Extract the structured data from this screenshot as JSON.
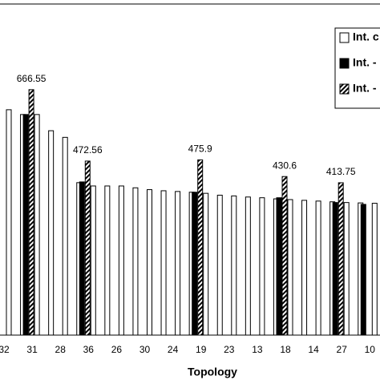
{
  "chart_data": {
    "type": "bar",
    "x_label": "Topology",
    "categories": [
      "32",
      null,
      "31",
      null,
      "28",
      null,
      "36",
      null,
      "26",
      null,
      "30",
      null,
      "24",
      null,
      "19",
      null,
      "23",
      null,
      "13",
      null,
      "18",
      null,
      "14",
      null,
      "27",
      null,
      "10"
    ],
    "ylim": [
      0,
      910
    ],
    "legend": "top-right",
    "series": [
      {
        "name": "Int. c",
        "color": "#ffffff",
        "pattern": "none",
        "values": [
          612,
          599,
          599,
          555,
          537,
          414,
          405,
          405,
          405,
          400,
          395,
          392,
          390,
          388,
          385,
          380,
          378,
          375,
          373,
          370,
          368,
          366,
          364,
          362,
          360,
          359,
          358
        ]
      },
      {
        "name": "Int. -",
        "color": "#000000",
        "pattern": "none",
        "values": [
          null,
          null,
          599,
          null,
          null,
          null,
          416,
          null,
          null,
          null,
          null,
          null,
          null,
          null,
          388,
          null,
          null,
          null,
          null,
          null,
          373,
          null,
          null,
          null,
          360,
          null,
          355
        ]
      },
      {
        "name": "Int. -",
        "color": "#000000",
        "pattern": "hatch",
        "values": [
          null,
          null,
          666.55,
          null,
          null,
          null,
          472.56,
          null,
          null,
          null,
          null,
          null,
          null,
          null,
          475.9,
          null,
          null,
          null,
          null,
          null,
          430.6,
          null,
          null,
          null,
          413.75,
          null,
          null
        ],
        "show_value_labels": true
      }
    ]
  }
}
